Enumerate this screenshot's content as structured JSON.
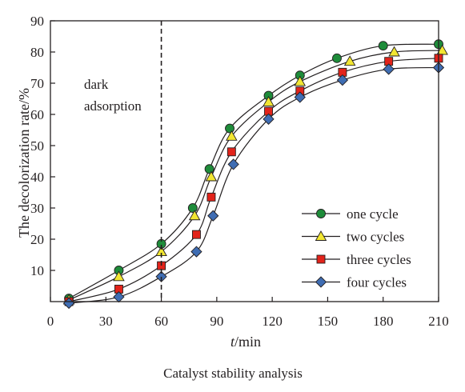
{
  "chart_data": {
    "type": "line",
    "xlabel_italic": "t",
    "xlabel_rest": "/min",
    "ylabel": "The decolorization rate/%",
    "caption": "Catalyst stability analysis",
    "xlim": [
      0,
      210
    ],
    "ylim": [
      0,
      90
    ],
    "xticks": [
      0,
      30,
      60,
      90,
      120,
      150,
      180,
      210
    ],
    "yticks": [
      10,
      20,
      30,
      40,
      50,
      60,
      70,
      80,
      90
    ],
    "grid": false,
    "legend_position": "bottom-right",
    "annotation": {
      "lines": [
        "dark",
        "adsorption"
      ],
      "x": 60
    },
    "series": [
      {
        "name": "one cycle",
        "marker": "circle",
        "color": "#1e8c3a",
        "x": [
          10,
          37,
          60,
          77,
          86,
          97,
          118,
          135,
          155,
          180,
          210
        ],
        "y": [
          1.0,
          10.0,
          18.5,
          30.0,
          42.5,
          55.5,
          66.0,
          72.5,
          78.0,
          82.0,
          82.5
        ]
      },
      {
        "name": "two cycles",
        "marker": "triangle",
        "color": "#f2e632",
        "x": [
          10,
          37,
          60,
          78,
          87,
          98,
          118,
          135,
          162,
          186,
          212
        ],
        "y": [
          0.5,
          8.0,
          16.0,
          27.5,
          40.0,
          53.0,
          64.0,
          70.5,
          77.0,
          80.0,
          80.5
        ]
      },
      {
        "name": "three cycles",
        "marker": "square",
        "color": "#e2231a",
        "x": [
          10,
          37,
          60,
          79,
          87,
          98,
          118,
          135,
          158,
          183,
          210
        ],
        "y": [
          0.0,
          4.0,
          11.5,
          21.5,
          33.5,
          48.0,
          61.0,
          67.5,
          73.5,
          77.0,
          78.0
        ]
      },
      {
        "name": "four cycles",
        "marker": "diamond",
        "color": "#3f6db3",
        "x": [
          10,
          37,
          60,
          79,
          88,
          99,
          118,
          135,
          158,
          183,
          210
        ],
        "y": [
          -0.5,
          1.5,
          8.0,
          16.0,
          27.5,
          44.0,
          58.5,
          65.5,
          71.0,
          74.5,
          75.0
        ]
      }
    ]
  }
}
